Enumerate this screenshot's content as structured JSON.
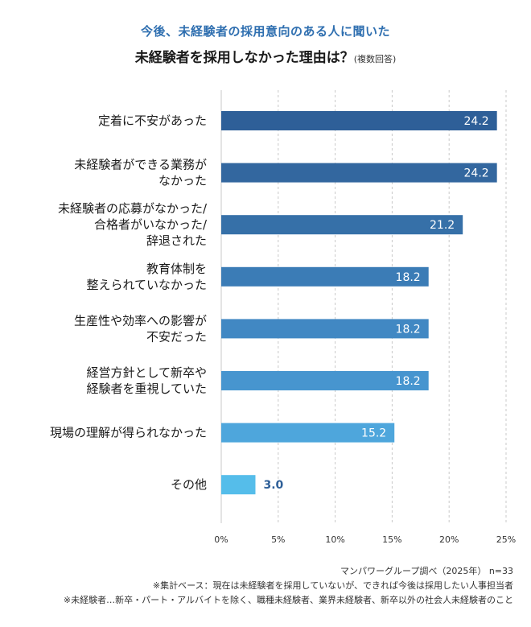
{
  "header": {
    "subtitle": "今後、未経験者の採用意向のある人に聞いた",
    "title": "未経験者を採用しなかった理由は？",
    "title_note": "(複数回答)"
  },
  "chart_data": {
    "type": "bar",
    "orientation": "horizontal",
    "categories": [
      [
        "定着に不安があった"
      ],
      [
        "未経験者ができる業務が",
        "なかった"
      ],
      [
        "未経験者の応募がなかった/",
        "合格者がいなかった/",
        "辞退された"
      ],
      [
        "教育体制を",
        "整えられていなかった"
      ],
      [
        "生産性や効率への影響が",
        "不安だった"
      ],
      [
        "経営方針として新卒や",
        "経験者を重視していた"
      ],
      [
        "現場の理解が得られなかった"
      ],
      [
        "その他"
      ]
    ],
    "values": [
      24.2,
      24.2,
      21.2,
      18.2,
      18.2,
      18.2,
      15.2,
      3.0
    ],
    "value_labels": [
      "24.2",
      "24.2",
      "21.2",
      "18.2",
      "18.2",
      "18.2",
      "15.2",
      "3.0"
    ],
    "bar_colors": [
      "#2e5f98",
      "#33679f",
      "#3670a8",
      "#3b7cb6",
      "#4188c3",
      "#4795cf",
      "#4ea6dc",
      "#55bdea"
    ],
    "xlim": [
      0,
      25
    ],
    "x_ticks": [
      "0%",
      "5%",
      "10%",
      "15%",
      "20%",
      "25%"
    ],
    "grid": "vertical dashed"
  },
  "footer": {
    "source": "マンパワーグループ調べ（2025年） n=33",
    "note1": "※集計ベース：現在は未経験者を採用していないが、できれば今後は採用したい人事担当者",
    "note2": "※未経験者…新卒・パート・アルバイトを除く、職種未経験者、業界未経験者、新卒以外の社会人未経験者のこと"
  }
}
